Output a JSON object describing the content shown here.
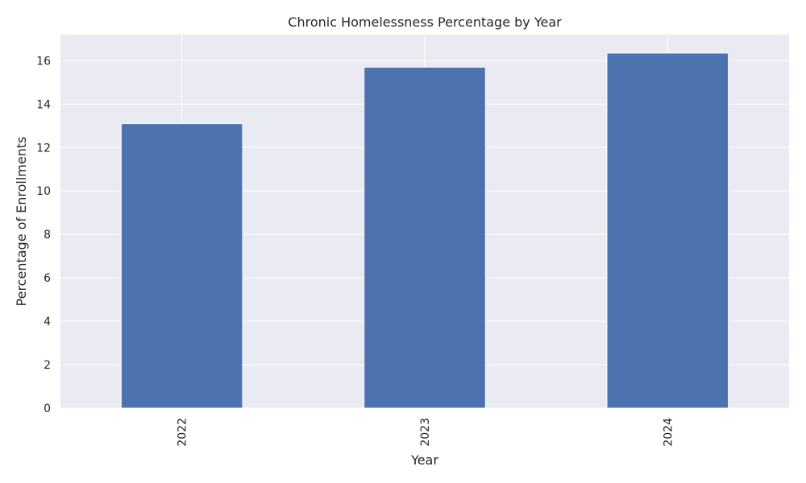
{
  "chart_data": {
    "type": "bar",
    "title": "Chronic Homelessness Percentage by Year",
    "xlabel": "Year",
    "ylabel": "Percentage of Enrollments",
    "categories": [
      "2022",
      "2023",
      "2024"
    ],
    "values": [
      13.1,
      15.7,
      16.35
    ],
    "ylim": [
      0,
      17.2
    ],
    "yticks": [
      0,
      2,
      4,
      6,
      8,
      10,
      12,
      14,
      16
    ],
    "grid": true,
    "legend": "none",
    "x_tick_rotation": "vertical",
    "colors": {
      "bar": "#4c72b0",
      "plot_background": "#eaeaf2",
      "grid": "#ffffff",
      "text": "#262626"
    }
  }
}
